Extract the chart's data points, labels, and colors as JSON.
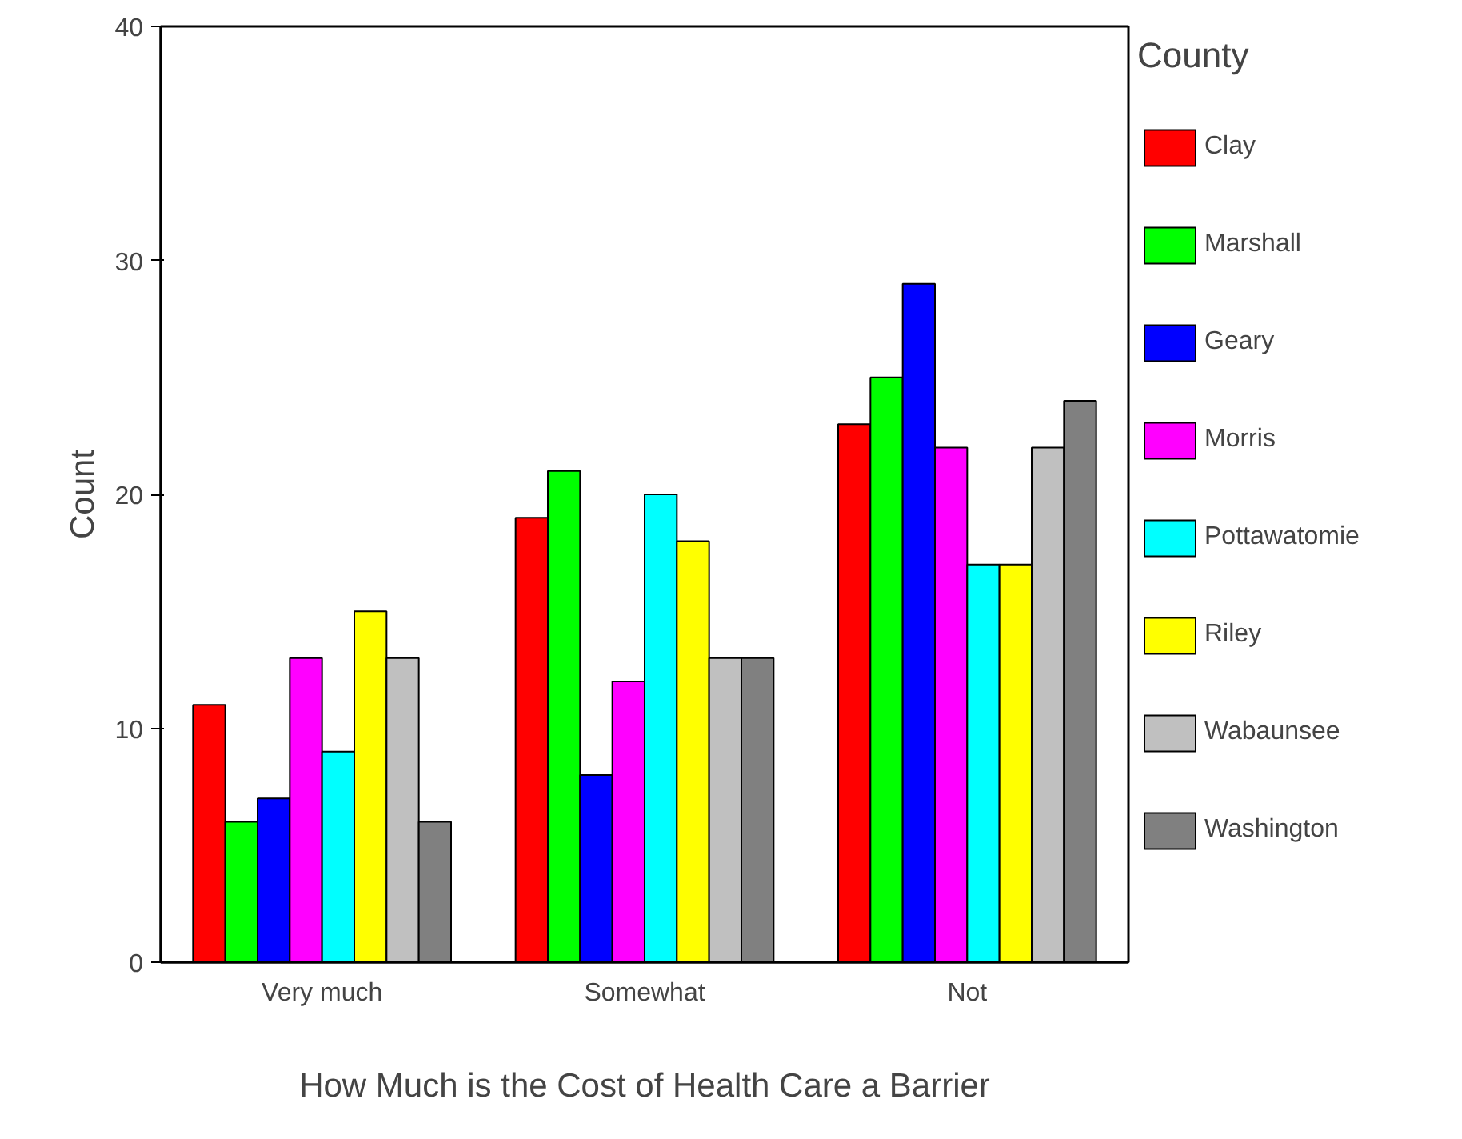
{
  "chart_data": {
    "type": "bar",
    "xlabel": "How Much is the Cost of Health Care a Barrier",
    "ylabel": "Count",
    "legend_title": "County",
    "categories": [
      "Very much",
      "Somewhat",
      "Not"
    ],
    "series": [
      {
        "name": "Clay",
        "color": "#ff0000",
        "values": [
          11,
          19,
          23
        ]
      },
      {
        "name": "Marshall",
        "color": "#00ff00",
        "values": [
          6,
          21,
          25
        ]
      },
      {
        "name": "Geary",
        "color": "#0000ff",
        "values": [
          7,
          8,
          29
        ]
      },
      {
        "name": "Morris",
        "color": "#ff00ff",
        "values": [
          13,
          12,
          22
        ]
      },
      {
        "name": "Pottawatomie",
        "color": "#00ffff",
        "values": [
          9,
          20,
          17
        ]
      },
      {
        "name": "Riley",
        "color": "#ffff00",
        "values": [
          15,
          18,
          17
        ]
      },
      {
        "name": "Wabaunsee",
        "color": "#c0c0c0",
        "values": [
          13,
          13,
          22
        ]
      },
      {
        "name": "Washington",
        "color": "#808080",
        "values": [
          6,
          13,
          24
        ]
      }
    ],
    "ylim": [
      0,
      40
    ],
    "yticks": [
      0,
      10,
      20,
      30,
      40
    ],
    "grid": false,
    "legend": "right"
  }
}
